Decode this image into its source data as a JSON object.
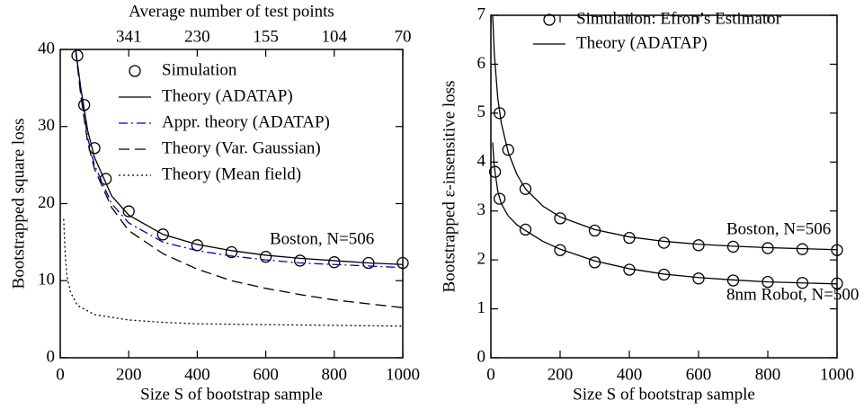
{
  "chart_data": [
    {
      "type": "line",
      "xlabel": "Size S of bootstrap sample",
      "ylabel": "Bootstrapped square loss",
      "x2label": "Average number of test points",
      "xlim": [
        0,
        1000
      ],
      "ylim": [
        0,
        40
      ],
      "xticks": [
        0,
        200,
        400,
        600,
        800,
        1000
      ],
      "yticks": [
        0,
        10,
        20,
        30,
        40
      ],
      "x2ticks": [
        {
          "value": 200,
          "label": "341"
        },
        {
          "value": 400,
          "label": "230"
        },
        {
          "value": 600,
          "label": "155"
        },
        {
          "value": 800,
          "label": "104"
        },
        {
          "value": 1000,
          "label": "70"
        }
      ],
      "annotations": [
        "Boston, N=506"
      ],
      "series": [
        {
          "name": "Simulation",
          "style": "marker",
          "color": "#000000",
          "x": [
            50,
            70,
            100,
            133,
            200,
            300,
            400,
            500,
            600,
            700,
            800,
            900,
            1000
          ],
          "values": [
            39.2,
            32.8,
            27.2,
            23.2,
            19.0,
            16.0,
            14.6,
            13.7,
            13.1,
            12.6,
            12.4,
            12.3,
            12.3
          ]
        },
        {
          "name": "Theory (ADATAP)",
          "style": "solid",
          "color": "#000000",
          "x": [
            45,
            60,
            80,
            100,
            150,
            200,
            300,
            400,
            500,
            600,
            700,
            800,
            900,
            1000
          ],
          "values": [
            40,
            35,
            29.5,
            26,
            21,
            18.5,
            16,
            14.7,
            13.9,
            13.3,
            12.9,
            12.6,
            12.3,
            12.1
          ]
        },
        {
          "name": "Appr. theory (ADATAP)",
          "style": "dashdot",
          "color": "#0000cc",
          "x": [
            45,
            60,
            80,
            100,
            150,
            200,
            300,
            400,
            500,
            600,
            700,
            800,
            900,
            1000
          ],
          "values": [
            40,
            34.5,
            28.5,
            25,
            20,
            17.5,
            15,
            13.9,
            13.2,
            12.7,
            12.3,
            12.1,
            11.9,
            11.7
          ]
        },
        {
          "name": "Theory (Var. Gaussian)",
          "style": "dashed",
          "color": "#000000",
          "x": [
            45,
            60,
            80,
            100,
            150,
            200,
            300,
            400,
            500,
            600,
            700,
            800,
            900,
            1000
          ],
          "values": [
            40,
            34,
            28,
            24.5,
            19.5,
            16.5,
            13.5,
            11.5,
            10,
            9,
            8.2,
            7.5,
            7,
            6.5
          ]
        },
        {
          "name": "Theory (Mean field)",
          "style": "dotted",
          "color": "#000000",
          "x": [
            10,
            15,
            20,
            30,
            50,
            100,
            200,
            300,
            400,
            600,
            800,
            1000
          ],
          "values": [
            18,
            13,
            10.5,
            8.5,
            6.8,
            5.6,
            4.9,
            4.6,
            4.4,
            4.3,
            4.2,
            4.1
          ]
        }
      ]
    },
    {
      "type": "line",
      "xlabel": "Size S of bootstrap sample",
      "ylabel": "Bootstrapped ε-insensitive loss",
      "xlim": [
        0,
        1000
      ],
      "ylim": [
        0,
        7
      ],
      "xticks": [
        0,
        200,
        400,
        600,
        800,
        1000
      ],
      "yticks": [
        0,
        1,
        2,
        3,
        4,
        5,
        6,
        7
      ],
      "annotations": [
        "Boston, N=506",
        "8nm Robot, N=500"
      ],
      "series": [
        {
          "name": "Simulation: Efron’s Estimator",
          "style": "marker",
          "color": "#000000",
          "x": [
            25,
            50,
            100,
            200,
            300,
            400,
            500,
            600,
            700,
            800,
            900,
            1000
          ],
          "values": [
            5.0,
            4.25,
            3.45,
            2.85,
            2.6,
            2.45,
            2.35,
            2.3,
            2.27,
            2.24,
            2.22,
            2.2
          ]
        },
        {
          "name": "Theory (ADATAP)",
          "style": "solid",
          "color": "#000000",
          "x": [
            5,
            10,
            20,
            30,
            50,
            75,
            100,
            150,
            200,
            300,
            400,
            500,
            600,
            700,
            800,
            900,
            1000
          ],
          "values": [
            7,
            6.2,
            5.3,
            4.8,
            4.2,
            3.75,
            3.45,
            3.1,
            2.88,
            2.62,
            2.47,
            2.38,
            2.32,
            2.28,
            2.25,
            2.23,
            2.21
          ]
        },
        {
          "style": "marker",
          "color": "#000000",
          "x": [
            12,
            25,
            100,
            200,
            300,
            400,
            500,
            600,
            700,
            800,
            900,
            1000
          ],
          "values": [
            3.8,
            3.25,
            2.62,
            2.2,
            1.95,
            1.8,
            1.7,
            1.62,
            1.58,
            1.55,
            1.53,
            1.52
          ]
        },
        {
          "style": "solid",
          "color": "#000000",
          "x": [
            5,
            10,
            20,
            30,
            50,
            75,
            100,
            150,
            200,
            300,
            400,
            500,
            600,
            700,
            800,
            900,
            1000
          ],
          "values": [
            4.4,
            3.9,
            3.4,
            3.15,
            2.9,
            2.72,
            2.6,
            2.38,
            2.22,
            1.98,
            1.82,
            1.71,
            1.64,
            1.59,
            1.55,
            1.53,
            1.51
          ]
        }
      ]
    }
  ]
}
